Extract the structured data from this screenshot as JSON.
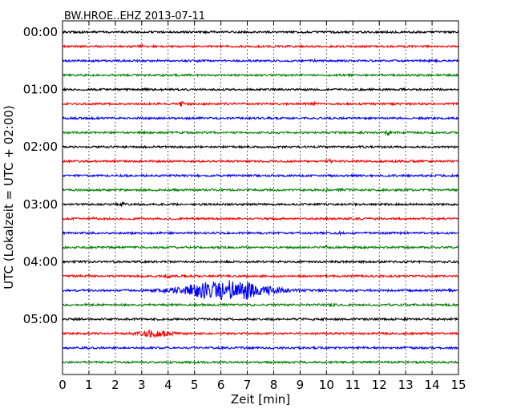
{
  "chart_data": {
    "type": "line",
    "title": "BW.HROE..EHZ 2013-07-11",
    "xlabel": "Zeit  [min]",
    "ylabel": "UTC (Lokalzeit = UTC + 02:00)",
    "xlim": [
      0,
      15
    ],
    "xticks": [
      "0",
      "1",
      "2",
      "3",
      "4",
      "5",
      "6",
      "7",
      "8",
      "9",
      "10",
      "11",
      "12",
      "13",
      "14",
      "15"
    ],
    "yticks": [
      "00:00",
      "01:00",
      "02:00",
      "03:00",
      "04:00",
      "05:00"
    ],
    "grid": "vertical dotted",
    "trace_colors": [
      "#000000",
      "#ff0000",
      "#0000ff",
      "#008000"
    ],
    "traces": [
      {
        "start": "00:00",
        "events": []
      },
      {
        "start": "00:15",
        "events": [
          {
            "t": 3.0,
            "amp": 0.15
          }
        ]
      },
      {
        "start": "00:30",
        "events": [
          {
            "t": 9.5,
            "amp": 0.15
          }
        ]
      },
      {
        "start": "00:45",
        "events": []
      },
      {
        "start": "01:00",
        "events": []
      },
      {
        "start": "01:15",
        "events": [
          {
            "t": 4.5,
            "amp": 0.3
          },
          {
            "t": 9.5,
            "amp": 0.3
          }
        ]
      },
      {
        "start": "01:30",
        "events": []
      },
      {
        "start": "01:45",
        "events": [
          {
            "t": 12.3,
            "amp": 0.3
          }
        ]
      },
      {
        "start": "02:00",
        "events": []
      },
      {
        "start": "02:15",
        "events": [
          {
            "t": 10.1,
            "amp": 0.3
          }
        ]
      },
      {
        "start": "02:30",
        "events": []
      },
      {
        "start": "02:45",
        "events": [
          {
            "t": 10.0,
            "amp": 0.15
          },
          {
            "t": 10.5,
            "amp": 0.15
          },
          {
            "t": 14.0,
            "amp": 0.15
          }
        ]
      },
      {
        "start": "03:00",
        "events": [
          {
            "t": 2.3,
            "amp": 0.15
          }
        ]
      },
      {
        "start": "03:15",
        "events": [
          {
            "t": 1.2,
            "amp": 0.12
          }
        ]
      },
      {
        "start": "03:30",
        "events": [
          {
            "t": 10.5,
            "amp": 0.12
          }
        ]
      },
      {
        "start": "03:45",
        "events": [
          {
            "t": 10.0,
            "amp": 0.12
          }
        ]
      },
      {
        "start": "04:00",
        "events": [
          {
            "t": 2.0,
            "amp": 0.12
          }
        ]
      },
      {
        "start": "04:15",
        "events": [
          {
            "t": 4.0,
            "amp": 0.12
          }
        ]
      },
      {
        "start": "04:30",
        "events": [
          {
            "t": 6.2,
            "amp": 1.35,
            "spread": 1.6
          },
          {
            "t": 14.7,
            "amp": 0.15
          }
        ]
      },
      {
        "start": "04:45",
        "events": [
          {
            "t": 10.2,
            "amp": 0.2
          }
        ]
      },
      {
        "start": "05:00",
        "events": [
          {
            "t": 13.0,
            "amp": 0.12
          }
        ]
      },
      {
        "start": "05:15",
        "events": [
          {
            "t": 3.5,
            "amp": 0.4,
            "spread": 0.6
          }
        ]
      },
      {
        "start": "05:30",
        "events": []
      },
      {
        "start": "05:45",
        "events": []
      }
    ]
  }
}
